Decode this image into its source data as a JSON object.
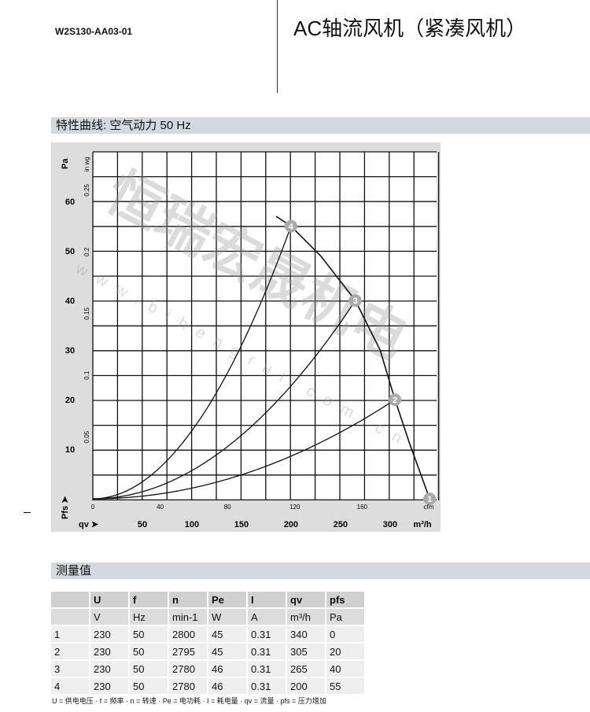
{
  "header": {
    "model": "W2S130-AA03-01",
    "title": "AC轴流风机（紧凑风机）"
  },
  "section_chart": "特性曲线: 空气动力 50 Hz",
  "section_table": "测量值",
  "watermark": {
    "text": "恒瑞宏晟机电",
    "url": "www.bihengrui.com.cn"
  },
  "chart_data": {
    "type": "line",
    "xlabel": "qv",
    "xunit": "m³/h",
    "xlim": [
      0,
      347
    ],
    "xticks": [
      50,
      100,
      150,
      200,
      250,
      300
    ],
    "x2unit": "cfm",
    "x2ticks": [
      0,
      40,
      80,
      120,
      160
    ],
    "ylabel": "Pfs",
    "yunit": "Pa",
    "ylim": [
      0,
      70
    ],
    "yticks": [
      10,
      20,
      30,
      40,
      50,
      60
    ],
    "y2unit": "in wg",
    "y2ticks": [
      "0.05",
      "0.1",
      "0.15",
      "0.2",
      "0.25"
    ],
    "grid": true,
    "fan_curve": {
      "x": [
        185,
        200,
        230,
        265,
        290,
        305,
        320,
        340
      ],
      "y": [
        57,
        55,
        49,
        40,
        30,
        20,
        11,
        0
      ]
    },
    "system_curves": [
      {
        "through_point": "2",
        "x": 305,
        "y": 20
      },
      {
        "through_point": "3",
        "x": 265,
        "y": 40
      },
      {
        "through_point": "4",
        "x": 200,
        "y": 55
      }
    ],
    "operating_points": [
      {
        "label": "1",
        "x": 340,
        "y": 0
      },
      {
        "label": "2",
        "x": 305,
        "y": 20
      },
      {
        "label": "3",
        "x": 265,
        "y": 40
      },
      {
        "label": "4",
        "x": 200,
        "y": 55
      }
    ]
  },
  "table": {
    "header1": [
      "",
      "U",
      "f",
      "n",
      "Pe",
      "I",
      "qv",
      "pfs"
    ],
    "header2": [
      "",
      "V",
      "Hz",
      "min-1",
      "W",
      "A",
      "m³/h",
      "Pa"
    ],
    "rows": [
      [
        "1",
        "230",
        "50",
        "2800",
        "45",
        "0.31",
        "340",
        "0"
      ],
      [
        "2",
        "230",
        "50",
        "2795",
        "45",
        "0.31",
        "305",
        "20"
      ],
      [
        "3",
        "230",
        "50",
        "2780",
        "46",
        "0.31",
        "265",
        "40"
      ],
      [
        "4",
        "230",
        "50",
        "2780",
        "46",
        "0.31",
        "200",
        "55"
      ]
    ]
  },
  "footnote": "U = 供电电压 · f = 频率 · n = 转速 · Pe = 电功耗 · I = 耗电量 · qv = 流量 · pfs = 压力增加"
}
